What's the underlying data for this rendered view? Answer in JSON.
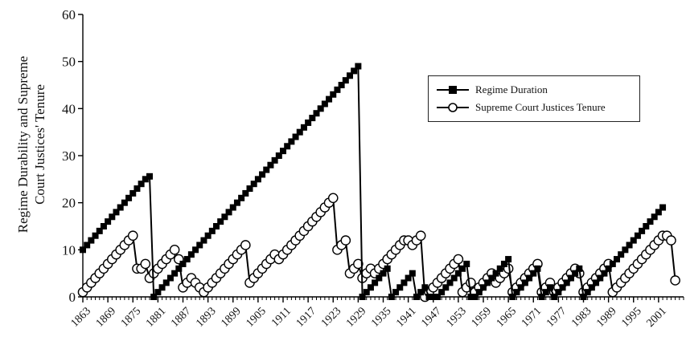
{
  "chart_data": {
    "type": "line",
    "title": "",
    "xlabel": "",
    "ylabel": "Regime Durability and Supreme Court Justices' Tenure",
    "ylabel_lines": [
      "Regime Durability and Supreme",
      "Court Justices' Tenure"
    ],
    "ylim": [
      0,
      60
    ],
    "yticks": [
      0,
      10,
      20,
      30,
      40,
      50,
      60
    ],
    "xlim": [
      1863,
      2007
    ],
    "xticks": [
      1863,
      1869,
      1875,
      1881,
      1887,
      1893,
      1899,
      1905,
      1911,
      1917,
      1923,
      1929,
      1935,
      1941,
      1947,
      1953,
      1959,
      1965,
      1971,
      1977,
      1983,
      1989,
      1995,
      2001
    ],
    "grid": false,
    "legend_position": "top-right",
    "series": [
      {
        "name": "Regime Duration",
        "marker": "filled-square",
        "color": "#000000",
        "points": [
          [
            1863,
            10
          ],
          [
            1864,
            11
          ],
          [
            1865,
            12
          ],
          [
            1866,
            13
          ],
          [
            1867,
            14
          ],
          [
            1868,
            15
          ],
          [
            1869,
            16
          ],
          [
            1870,
            17
          ],
          [
            1871,
            18
          ],
          [
            1872,
            19
          ],
          [
            1873,
            20
          ],
          [
            1874,
            21
          ],
          [
            1875,
            22
          ],
          [
            1876,
            23
          ],
          [
            1877,
            24
          ],
          [
            1878,
            25
          ],
          [
            1879,
            25.6
          ],
          [
            1880,
            0
          ],
          [
            1881,
            1
          ],
          [
            1882,
            2
          ],
          [
            1883,
            3
          ],
          [
            1884,
            4
          ],
          [
            1885,
            5
          ],
          [
            1886,
            6
          ],
          [
            1887,
            7
          ],
          [
            1888,
            8
          ],
          [
            1889,
            9
          ],
          [
            1890,
            10
          ],
          [
            1891,
            11
          ],
          [
            1892,
            12
          ],
          [
            1893,
            13
          ],
          [
            1894,
            14
          ],
          [
            1895,
            15
          ],
          [
            1896,
            16
          ],
          [
            1897,
            17
          ],
          [
            1898,
            18
          ],
          [
            1899,
            19
          ],
          [
            1900,
            20
          ],
          [
            1901,
            21
          ],
          [
            1902,
            22
          ],
          [
            1903,
            23
          ],
          [
            1904,
            24
          ],
          [
            1905,
            25
          ],
          [
            1906,
            26
          ],
          [
            1907,
            27
          ],
          [
            1908,
            28
          ],
          [
            1909,
            29
          ],
          [
            1910,
            30
          ],
          [
            1911,
            31
          ],
          [
            1912,
            32
          ],
          [
            1913,
            33
          ],
          [
            1914,
            34
          ],
          [
            1915,
            35
          ],
          [
            1916,
            36
          ],
          [
            1917,
            37
          ],
          [
            1918,
            38
          ],
          [
            1919,
            39
          ],
          [
            1920,
            40
          ],
          [
            1921,
            41
          ],
          [
            1922,
            42
          ],
          [
            1923,
            43
          ],
          [
            1924,
            44
          ],
          [
            1925,
            45
          ],
          [
            1926,
            46
          ],
          [
            1927,
            47
          ],
          [
            1928,
            48
          ],
          [
            1929,
            49
          ],
          [
            1930,
            0
          ],
          [
            1931,
            1
          ],
          [
            1932,
            2
          ],
          [
            1933,
            3
          ],
          [
            1934,
            4
          ],
          [
            1935,
            5
          ],
          [
            1936,
            6
          ],
          [
            1937,
            0
          ],
          [
            1938,
            1
          ],
          [
            1939,
            2
          ],
          [
            1940,
            3
          ],
          [
            1941,
            4
          ],
          [
            1942,
            5
          ],
          [
            1943,
            0
          ],
          [
            1944,
            1
          ],
          [
            1945,
            2
          ],
          [
            1946,
            0
          ],
          [
            1947,
            0
          ],
          [
            1948,
            0
          ],
          [
            1949,
            1
          ],
          [
            1950,
            2
          ],
          [
            1951,
            3
          ],
          [
            1952,
            4
          ],
          [
            1953,
            5
          ],
          [
            1954,
            6
          ],
          [
            1955,
            7
          ],
          [
            1956,
            0
          ],
          [
            1957,
            0
          ],
          [
            1958,
            1
          ],
          [
            1959,
            2
          ],
          [
            1960,
            3
          ],
          [
            1961,
            4
          ],
          [
            1962,
            5
          ],
          [
            1963,
            6
          ],
          [
            1964,
            7
          ],
          [
            1965,
            8
          ],
          [
            1966,
            0
          ],
          [
            1967,
            1
          ],
          [
            1968,
            2
          ],
          [
            1969,
            3
          ],
          [
            1970,
            4
          ],
          [
            1971,
            5
          ],
          [
            1972,
            6
          ],
          [
            1973,
            0
          ],
          [
            1974,
            1
          ],
          [
            1975,
            2
          ],
          [
            1976,
            0
          ],
          [
            1977,
            1
          ],
          [
            1978,
            2
          ],
          [
            1979,
            3
          ],
          [
            1980,
            4
          ],
          [
            1981,
            5
          ],
          [
            1982,
            6
          ],
          [
            1983,
            0
          ],
          [
            1984,
            1
          ],
          [
            1985,
            2
          ],
          [
            1986,
            3
          ],
          [
            1987,
            4
          ],
          [
            1988,
            5
          ],
          [
            1989,
            6
          ],
          [
            1990,
            7
          ],
          [
            1991,
            8
          ],
          [
            1992,
            9
          ],
          [
            1993,
            10
          ],
          [
            1994,
            11
          ],
          [
            1995,
            12
          ],
          [
            1996,
            13
          ],
          [
            1997,
            14
          ],
          [
            1998,
            15
          ],
          [
            1999,
            16
          ],
          [
            2000,
            17
          ],
          [
            2001,
            18
          ],
          [
            2002,
            19
          ]
        ]
      },
      {
        "name": "Supreme Court Justices Tenure",
        "marker": "open-circle",
        "color": "#000000",
        "points": [
          [
            1863,
            1
          ],
          [
            1864,
            2
          ],
          [
            1865,
            3
          ],
          [
            1866,
            4
          ],
          [
            1867,
            5
          ],
          [
            1868,
            6
          ],
          [
            1869,
            7
          ],
          [
            1870,
            8
          ],
          [
            1871,
            9
          ],
          [
            1872,
            10
          ],
          [
            1873,
            11
          ],
          [
            1874,
            12
          ],
          [
            1875,
            13
          ],
          [
            1876,
            6
          ],
          [
            1877,
            6
          ],
          [
            1878,
            7
          ],
          [
            1879,
            4
          ],
          [
            1880,
            5
          ],
          [
            1881,
            6
          ],
          [
            1882,
            7
          ],
          [
            1883,
            8
          ],
          [
            1884,
            9
          ],
          [
            1885,
            10
          ],
          [
            1886,
            8
          ],
          [
            1887,
            2
          ],
          [
            1888,
            3
          ],
          [
            1889,
            4
          ],
          [
            1890,
            3
          ],
          [
            1891,
            2
          ],
          [
            1892,
            1
          ],
          [
            1893,
            2
          ],
          [
            1894,
            3
          ],
          [
            1895,
            4
          ],
          [
            1896,
            5
          ],
          [
            1897,
            6
          ],
          [
            1898,
            7
          ],
          [
            1899,
            8
          ],
          [
            1900,
            9
          ],
          [
            1901,
            10
          ],
          [
            1902,
            11
          ],
          [
            1903,
            3
          ],
          [
            1904,
            4
          ],
          [
            1905,
            5
          ],
          [
            1906,
            6
          ],
          [
            1907,
            7
          ],
          [
            1908,
            8
          ],
          [
            1909,
            9
          ],
          [
            1910,
            8
          ],
          [
            1911,
            9
          ],
          [
            1912,
            10
          ],
          [
            1913,
            11
          ],
          [
            1914,
            12
          ],
          [
            1915,
            13
          ],
          [
            1916,
            14
          ],
          [
            1917,
            15
          ],
          [
            1918,
            16
          ],
          [
            1919,
            17
          ],
          [
            1920,
            18
          ],
          [
            1921,
            19
          ],
          [
            1922,
            20
          ],
          [
            1923,
            21
          ],
          [
            1924,
            10
          ],
          [
            1925,
            11
          ],
          [
            1926,
            12
          ],
          [
            1927,
            5
          ],
          [
            1928,
            6
          ],
          [
            1929,
            7
          ],
          [
            1930,
            4
          ],
          [
            1931,
            5
          ],
          [
            1932,
            6
          ],
          [
            1933,
            5
          ],
          [
            1934,
            6
          ],
          [
            1935,
            7
          ],
          [
            1936,
            8
          ],
          [
            1937,
            9
          ],
          [
            1938,
            10
          ],
          [
            1939,
            11
          ],
          [
            1940,
            12
          ],
          [
            1941,
            12
          ],
          [
            1942,
            11
          ],
          [
            1943,
            12
          ],
          [
            1944,
            13
          ],
          [
            1945,
            0
          ],
          [
            1946,
            1
          ],
          [
            1947,
            2
          ],
          [
            1948,
            3
          ],
          [
            1949,
            4
          ],
          [
            1950,
            5
          ],
          [
            1951,
            6
          ],
          [
            1952,
            7
          ],
          [
            1953,
            8
          ],
          [
            1954,
            1
          ],
          [
            1955,
            2
          ],
          [
            1956,
            3
          ],
          [
            1957,
            1
          ],
          [
            1958,
            2
          ],
          [
            1959,
            3
          ],
          [
            1960,
            4
          ],
          [
            1961,
            5
          ],
          [
            1962,
            3
          ],
          [
            1963,
            4
          ],
          [
            1964,
            5
          ],
          [
            1965,
            6
          ],
          [
            1966,
            1
          ],
          [
            1967,
            2
          ],
          [
            1968,
            3
          ],
          [
            1969,
            4
          ],
          [
            1970,
            5
          ],
          [
            1971,
            6
          ],
          [
            1972,
            7
          ],
          [
            1973,
            1
          ],
          [
            1974,
            2
          ],
          [
            1975,
            3
          ],
          [
            1976,
            1
          ],
          [
            1977,
            2
          ],
          [
            1978,
            3
          ],
          [
            1979,
            4
          ],
          [
            1980,
            5
          ],
          [
            1981,
            6
          ],
          [
            1982,
            5
          ],
          [
            1983,
            1
          ],
          [
            1984,
            2
          ],
          [
            1985,
            3
          ],
          [
            1986,
            4
          ],
          [
            1987,
            5
          ],
          [
            1988,
            6
          ],
          [
            1989,
            7
          ],
          [
            1990,
            1
          ],
          [
            1991,
            2
          ],
          [
            1992,
            3
          ],
          [
            1993,
            4
          ],
          [
            1994,
            5
          ],
          [
            1995,
            6
          ],
          [
            1996,
            7
          ],
          [
            1997,
            8
          ],
          [
            1998,
            9
          ],
          [
            1999,
            10
          ],
          [
            2000,
            11
          ],
          [
            2001,
            12
          ],
          [
            2002,
            13
          ],
          [
            2003,
            13
          ],
          [
            2004,
            12
          ],
          [
            2005,
            3.5
          ]
        ]
      }
    ]
  }
}
